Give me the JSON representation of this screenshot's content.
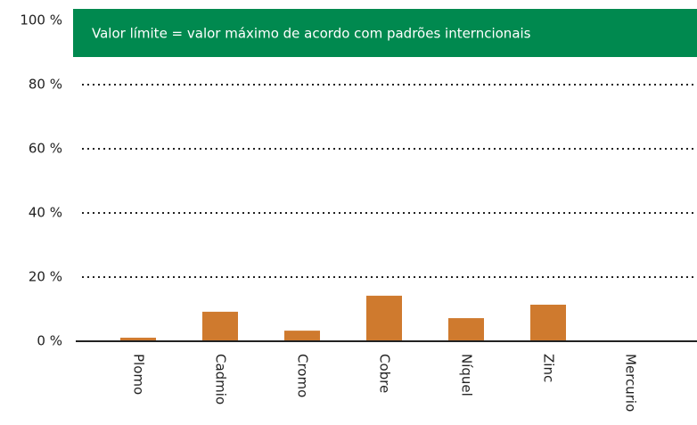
{
  "chart_data": {
    "type": "bar",
    "annotation": "Valor límite = valor máximo de acordo com padrões interncionais",
    "categories": [
      "Plomo",
      "Cadmio",
      "Cromo",
      "Cobre",
      "Níquel",
      "Zinc",
      "Mercurio"
    ],
    "values": [
      1.1,
      9.2,
      3.3,
      14.2,
      7.2,
      11.4,
      0
    ],
    "color": "#cf7a2e",
    "ylim": [
      0,
      100
    ],
    "yticks": [
      {
        "value": 0,
        "label": "0 %"
      },
      {
        "value": 20,
        "label": "20 %"
      },
      {
        "value": 40,
        "label": "40 %"
      },
      {
        "value": 60,
        "label": "60 %"
      },
      {
        "value": 80,
        "label": "80 %"
      },
      {
        "value": 100,
        "label": "100 %"
      }
    ],
    "grid": true
  }
}
